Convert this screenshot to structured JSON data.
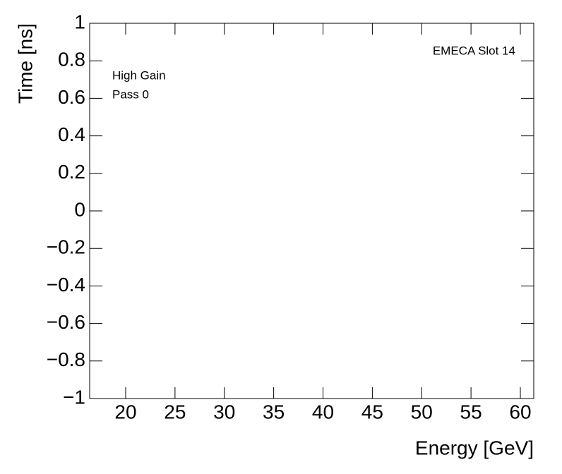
{
  "chart_data": {
    "type": "scatter",
    "x_label": "Energy [GeV]",
    "y_label": "Time [ns]",
    "annotations": [
      "EMECA Slot 14",
      "High Gain",
      "Pass 0"
    ],
    "xlim": [
      16.35,
      61.36
    ],
    "xticks": [
      20,
      25,
      30,
      35,
      40,
      45,
      50,
      55,
      60
    ],
    "ylim": [
      -1,
      1
    ],
    "yticks": [
      {
        "value": -1,
        "label": "−1"
      },
      {
        "value": -0.8,
        "label": "−0.8"
      },
      {
        "value": -0.6,
        "label": "−0.6"
      },
      {
        "value": -0.4,
        "label": "−0.4"
      },
      {
        "value": -0.2,
        "label": "−0.2"
      },
      0,
      0.2,
      0.4,
      0.6,
      0.8,
      1
    ]
  }
}
